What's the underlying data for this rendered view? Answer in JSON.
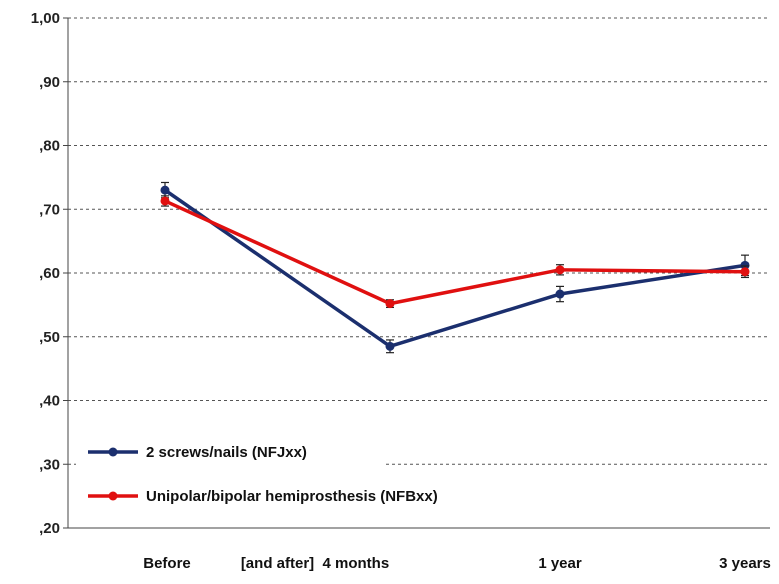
{
  "chart_data": {
    "type": "line",
    "categories": [
      "Before",
      "[and after]  4 months",
      "1 year",
      "3 years"
    ],
    "ylim": [
      0.2,
      1.0
    ],
    "y_ticks": [
      {
        "value": 0.2,
        "label": ",20"
      },
      {
        "value": 0.3,
        "label": ",30"
      },
      {
        "value": 0.4,
        "label": ",40"
      },
      {
        "value": 0.5,
        "label": ",50"
      },
      {
        "value": 0.6,
        "label": ",60"
      },
      {
        "value": 0.7,
        "label": ",70"
      },
      {
        "value": 0.8,
        "label": ",80"
      },
      {
        "value": 0.9,
        "label": ",90"
      },
      {
        "value": 1.0,
        "label": "1,00"
      }
    ],
    "grid": true,
    "legend_position": "bottom-left",
    "series": [
      {
        "name": "2 screws/nails (NFJxx)",
        "color": "#1b2f6e",
        "values": [
          0.73,
          0.485,
          0.567,
          0.612
        ],
        "errors": [
          0.012,
          0.01,
          0.012,
          0.016
        ]
      },
      {
        "name": "Unipolar/bipolar hemiprosthesis (NFBxx)",
        "color": "#e01010",
        "values": [
          0.713,
          0.552,
          0.605,
          0.602
        ],
        "errors": [
          0.008,
          0.006,
          0.008,
          0.009
        ]
      }
    ]
  }
}
